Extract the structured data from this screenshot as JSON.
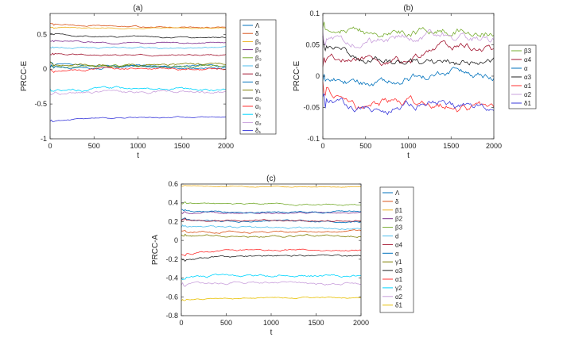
{
  "chart_data": [
    {
      "type": "line",
      "title": "(a)",
      "xlabel": "t",
      "ylabel": "PRCC-E",
      "xlim": [
        0,
        2000
      ],
      "ylim": [
        -1,
        0.8
      ],
      "xticks": [
        0,
        500,
        1000,
        1500,
        2000
      ],
      "yticks": [
        -1,
        -0.5,
        0,
        0.5
      ],
      "grid": false,
      "legend_position": "outside-right",
      "series": [
        {
          "name": "Λ",
          "color": "#0072BD",
          "values": [
            0.08,
            0.05,
            0.05,
            0.04,
            0.05
          ],
          "noise": 0.008
        },
        {
          "name": "δ",
          "color": "#D95319",
          "values": [
            0.65,
            0.62,
            0.61,
            0.6,
            0.6
          ],
          "noise": 0.006
        },
        {
          "name": "β₁",
          "color": "#EDB120",
          "values": [
            0.6,
            0.59,
            0.59,
            0.59,
            0.59
          ],
          "noise": 0.004
        },
        {
          "name": "β₂",
          "color": "#7E2F8E",
          "values": [
            0.4,
            0.38,
            0.38,
            0.38,
            0.38
          ],
          "noise": 0.006
        },
        {
          "name": "β₃",
          "color": "#77AC30",
          "values": [
            0.05,
            0.04,
            0.04,
            0.05,
            0.05
          ],
          "noise": 0.01
        },
        {
          "name": "d",
          "color": "#4DBEEE",
          "values": [
            0.32,
            0.31,
            0.31,
            0.3,
            0.31
          ],
          "noise": 0.006
        },
        {
          "name": "α₄",
          "color": "#A2142F",
          "values": [
            0.22,
            0.21,
            0.2,
            0.21,
            0.21
          ],
          "noise": 0.006
        },
        {
          "name": "α",
          "color": "#0072BD",
          "values": [
            0.04,
            0.02,
            0.03,
            0.02,
            0.03
          ],
          "noise": 0.01
        },
        {
          "name": "γ₁",
          "color": "#7F7F00",
          "values": [
            0.08,
            0.06,
            0.06,
            0.07,
            0.06
          ],
          "noise": 0.01
        },
        {
          "name": "α₃",
          "color": "#202020",
          "values": [
            0.5,
            0.47,
            0.47,
            0.46,
            0.46
          ],
          "noise": 0.006
        },
        {
          "name": "α₁",
          "color": "#FF3030",
          "values": [
            -0.02,
            0.0,
            0.01,
            0.0,
            0.0
          ],
          "noise": 0.01
        },
        {
          "name": "γ₂",
          "color": "#00D5FF",
          "values": [
            -0.3,
            -0.28,
            -0.29,
            -0.28,
            -0.3
          ],
          "noise": 0.012
        },
        {
          "name": "α₂",
          "color": "#C9A0DC",
          "values": [
            -0.36,
            -0.34,
            -0.33,
            -0.33,
            -0.34
          ],
          "noise": 0.012
        },
        {
          "name": "δ₁",
          "color": "#3A3ADB",
          "values": [
            -0.75,
            -0.7,
            -0.7,
            -0.69,
            -0.69
          ],
          "noise": 0.005
        }
      ]
    },
    {
      "type": "line",
      "title": "(b)",
      "xlabel": "t",
      "ylabel": "PRCC-E",
      "xlim": [
        0,
        2000
      ],
      "ylim": [
        -0.1,
        0.1
      ],
      "xticks": [
        0,
        500,
        1000,
        1500,
        2000
      ],
      "yticks": [
        -0.1,
        -0.05,
        0,
        0.05,
        0.1
      ],
      "grid": false,
      "legend_position": "outside-right",
      "series": [
        {
          "name": "β3",
          "color": "#77AC30",
          "values": [
            0.08,
            0.07,
            0.07,
            0.075,
            0.075,
            0.07
          ],
          "noise": 0.004
        },
        {
          "name": "α4",
          "color": "#A2142F",
          "values": [
            0.02,
            0.03,
            0.02,
            0.035,
            0.05,
            0.04
          ],
          "noise": 0.004
        },
        {
          "name": "α",
          "color": "#0072BD",
          "values": [
            0.0,
            -0.01,
            -0.005,
            -0.005,
            0.01,
            0.0
          ],
          "noise": 0.004
        },
        {
          "name": "α3",
          "color": "#202020",
          "values": [
            0.05,
            0.03,
            0.02,
            0.02,
            0.02,
            0.02
          ],
          "noise": 0.004
        },
        {
          "name": "α1",
          "color": "#FF3030",
          "values": [
            -0.02,
            -0.05,
            -0.04,
            -0.04,
            -0.05,
            -0.05
          ],
          "noise": 0.004
        },
        {
          "name": "α2",
          "color": "#C9A0DC",
          "values": [
            0.06,
            0.05,
            0.06,
            0.065,
            0.06,
            0.06
          ],
          "noise": 0.004
        },
        {
          "name": "δ1",
          "color": "#3A3ADB",
          "values": [
            -0.04,
            -0.05,
            -0.05,
            -0.04,
            -0.05,
            -0.055
          ],
          "noise": 0.004
        }
      ]
    },
    {
      "type": "line",
      "title": "(c)",
      "xlabel": "t",
      "ylabel": "PRCC-A",
      "xlim": [
        0,
        2000
      ],
      "ylim": [
        -0.8,
        0.6
      ],
      "xticks": [
        0,
        500,
        1000,
        1500,
        2000
      ],
      "yticks": [
        -0.8,
        -0.6,
        -0.4,
        -0.2,
        0,
        0.2,
        0.4,
        0.6
      ],
      "grid": false,
      "legend_position": "outside-right",
      "series": [
        {
          "name": "Λ",
          "color": "#0072BD",
          "values": [
            0.22,
            0.2,
            0.2,
            0.2,
            0.2
          ],
          "noise": 0.006
        },
        {
          "name": "δ",
          "color": "#D95319",
          "values": [
            0.1,
            0.09,
            0.09,
            0.09,
            0.09
          ],
          "noise": 0.006
        },
        {
          "name": "β1",
          "color": "#EDB120",
          "values": [
            0.58,
            0.58,
            0.57,
            0.57,
            0.57
          ],
          "noise": 0.003
        },
        {
          "name": "β2",
          "color": "#7E2F8E",
          "values": [
            0.3,
            0.29,
            0.29,
            0.29,
            0.29
          ],
          "noise": 0.005
        },
        {
          "name": "β3",
          "color": "#77AC30",
          "values": [
            0.4,
            0.39,
            0.39,
            0.38,
            0.38
          ],
          "noise": 0.005
        },
        {
          "name": "d",
          "color": "#4DBEEE",
          "values": [
            0.15,
            0.14,
            0.13,
            0.13,
            0.13
          ],
          "noise": 0.006
        },
        {
          "name": "α4",
          "color": "#A2142F",
          "values": [
            0.22,
            0.21,
            0.21,
            0.21,
            0.21
          ],
          "noise": 0.006
        },
        {
          "name": "α",
          "color": "#0072BD",
          "values": [
            0.32,
            0.3,
            0.3,
            0.3,
            0.31
          ],
          "noise": 0.005
        },
        {
          "name": "γ1",
          "color": "#7F7F00",
          "values": [
            0.05,
            0.04,
            0.04,
            0.05,
            0.04
          ],
          "noise": 0.006
        },
        {
          "name": "α3",
          "color": "#202020",
          "values": [
            -0.2,
            -0.17,
            -0.16,
            -0.16,
            -0.17
          ],
          "noise": 0.006
        },
        {
          "name": "α1",
          "color": "#FF3030",
          "values": [
            -0.15,
            -0.11,
            -0.1,
            -0.11,
            -0.11
          ],
          "noise": 0.006
        },
        {
          "name": "γ2",
          "color": "#00D5FF",
          "values": [
            -0.4,
            -0.38,
            -0.37,
            -0.38,
            -0.37
          ],
          "noise": 0.008
        },
        {
          "name": "α2",
          "color": "#C9A0DC",
          "values": [
            -0.47,
            -0.45,
            -0.45,
            -0.46,
            -0.46
          ],
          "noise": 0.008
        },
        {
          "name": "δ1",
          "color": "#E8C000",
          "values": [
            -0.64,
            -0.62,
            -0.61,
            -0.61,
            -0.61
          ],
          "noise": 0.004
        }
      ]
    }
  ]
}
